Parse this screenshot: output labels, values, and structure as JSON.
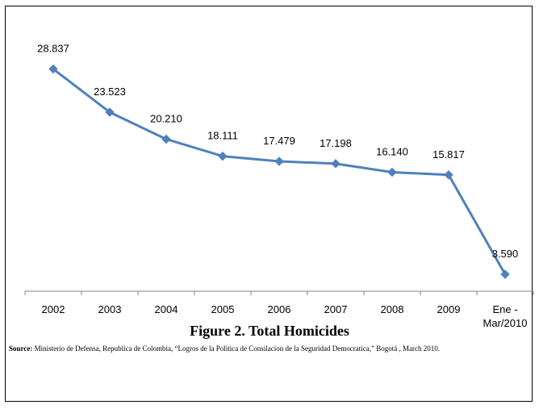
{
  "chart_data": {
    "type": "line",
    "categories": [
      "2002",
      "2003",
      "2004",
      "2005",
      "2006",
      "2007",
      "2008",
      "2009",
      "Ene -\nMar/2010"
    ],
    "values": [
      28837,
      23523,
      20210,
      18111,
      17479,
      17198,
      16140,
      15817,
      3590
    ],
    "data_labels": [
      "28.837",
      "23.523",
      "20.210",
      "18.111",
      "17.479",
      "17.198",
      "16.140",
      "15.817",
      "3.590"
    ],
    "title": "",
    "xlabel": "",
    "ylabel": "",
    "ylim": [
      0,
      35000
    ],
    "grid": false,
    "legend": "none",
    "color": "#4f81bd"
  },
  "figure": {
    "caption": "Figure 2. Total Homicides",
    "source_label": "Source:",
    "source_text": "Ministerio de Defensa, Republica de Colombia, “Logros de la Politica de Consilacion de la Seguridad Democratica,” Bogotá , March 2010."
  }
}
